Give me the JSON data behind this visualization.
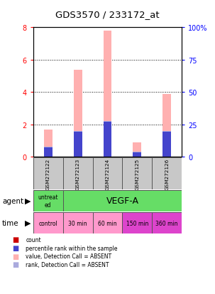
{
  "title": "GDS3570 / 233172_at",
  "samples": [
    "GSM272122",
    "GSM272123",
    "GSM272124",
    "GSM272125",
    "GSM272126"
  ],
  "value_absent": [
    1.7,
    5.4,
    7.8,
    0.9,
    3.9
  ],
  "rank_absent_pct": [
    8.0,
    20.0,
    27.5,
    4.0,
    20.0
  ],
  "count_values": [
    0.38,
    0.12,
    0.18,
    0.22,
    0.18
  ],
  "rank_pct": [
    7.5,
    19.5,
    27.0,
    3.5,
    19.5
  ],
  "ylim_left": [
    0,
    8
  ],
  "ylim_right": [
    0,
    100
  ],
  "yticks_left": [
    0,
    2,
    4,
    6,
    8
  ],
  "yticks_right": [
    0,
    25,
    50,
    75,
    100
  ],
  "color_count": "#cc0000",
  "color_rank": "#4444cc",
  "color_value_absent": "#ffb0b0",
  "color_rank_absent": "#aaaadd",
  "bar_width": 0.28,
  "agent_green": "#66dd66",
  "time_pink1": "#ff99cc",
  "time_pink2": "#dd44cc",
  "gray_sample": "#c8c8c8",
  "time_labels": [
    "control",
    "30 min",
    "60 min",
    "150 min",
    "360 min"
  ],
  "legend_items": [
    {
      "color": "#cc0000",
      "label": "count"
    },
    {
      "color": "#4444cc",
      "label": "percentile rank within the sample"
    },
    {
      "color": "#ffb0b0",
      "label": "value, Detection Call = ABSENT"
    },
    {
      "color": "#aaaadd",
      "label": "rank, Detection Call = ABSENT"
    }
  ]
}
